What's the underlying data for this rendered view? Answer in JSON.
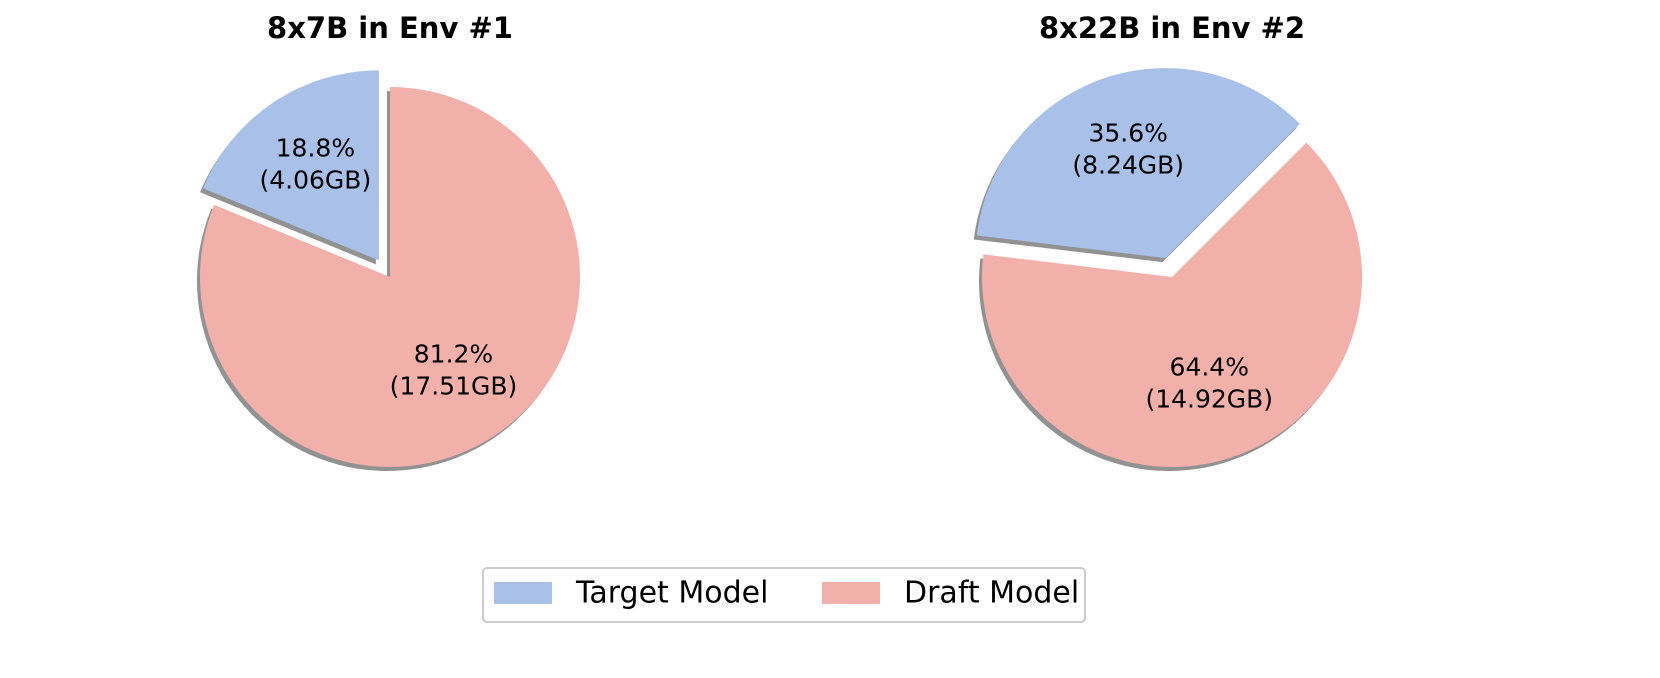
{
  "chart_data": [
    {
      "type": "pie",
      "title": "8x7B in Env #1",
      "categories": [
        "Target Model",
        "Draft Model"
      ],
      "values": [
        18.8,
        81.2
      ],
      "value_labels": [
        "18.8%",
        "81.2%"
      ],
      "memory_labels": [
        "(4.06GB)",
        "(17.51GB)"
      ],
      "colors": [
        "#a9c1e8",
        "#f2b0ab"
      ]
    },
    {
      "type": "pie",
      "title": "8x22B in Env #2",
      "categories": [
        "Target Model",
        "Draft Model"
      ],
      "values": [
        35.6,
        64.4
      ],
      "value_labels": [
        "35.6%",
        "64.4%"
      ],
      "memory_labels": [
        "(8.24GB)",
        "(14.92GB)"
      ],
      "colors": [
        "#a9c1e8",
        "#f2b0ab"
      ]
    }
  ]
}
